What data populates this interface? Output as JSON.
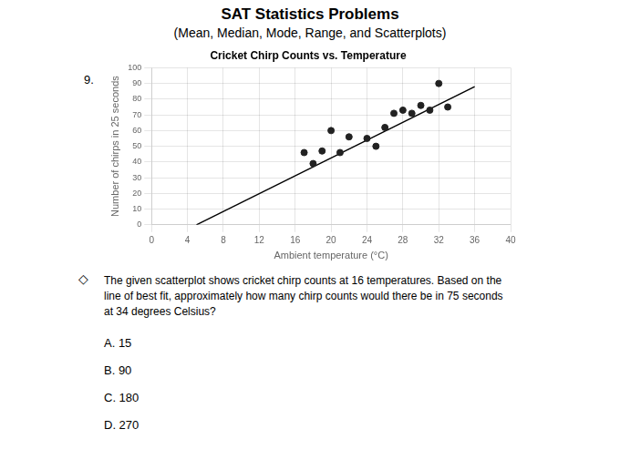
{
  "title": "SAT Statistics Problems",
  "subtitle": "(Mean, Median, Mode, Range, and Scatterplots)",
  "question_number": "9.",
  "bullet": "◇",
  "question_text": [
    "The given scatterplot shows cricket chirp counts at 16 temperatures. Based on the",
    "line of best fit, approximately how many chirp counts would there be in 75 seconds",
    "at 34 degrees Celsius?"
  ],
  "answer_choices": [
    "A. 15",
    "B. 90",
    "C. 180",
    "D. 270"
  ],
  "chart_data": {
    "type": "scatter",
    "title": "Cricket Chirp Counts vs. Temperature",
    "x_label": "Ambient temperature (°C)",
    "y_label": "Number of chirps in 25 seconds",
    "xlim": [
      0,
      40
    ],
    "ylim": [
      0,
      100
    ],
    "xticks": [
      0,
      4,
      8,
      12,
      16,
      20,
      24,
      28,
      32,
      36,
      40
    ],
    "yticks": [
      0,
      10,
      20,
      30,
      40,
      50,
      60,
      70,
      80,
      90,
      100
    ],
    "grid": true,
    "series": [
      {
        "type": "scatter",
        "marker": "o",
        "color": "#222222",
        "x": [
          17,
          18,
          19,
          20,
          21,
          22,
          24,
          25,
          26,
          27,
          28,
          29,
          30,
          31,
          32,
          33
        ],
        "values": [
          46,
          39,
          47,
          60,
          46,
          56,
          55,
          50,
          62,
          71,
          73,
          71,
          76,
          73,
          90,
          75
        ]
      },
      {
        "type": "line",
        "line_style": "solid",
        "color": "#000000",
        "x": [
          5,
          36
        ],
        "values": [
          0,
          88
        ]
      }
    ]
  }
}
